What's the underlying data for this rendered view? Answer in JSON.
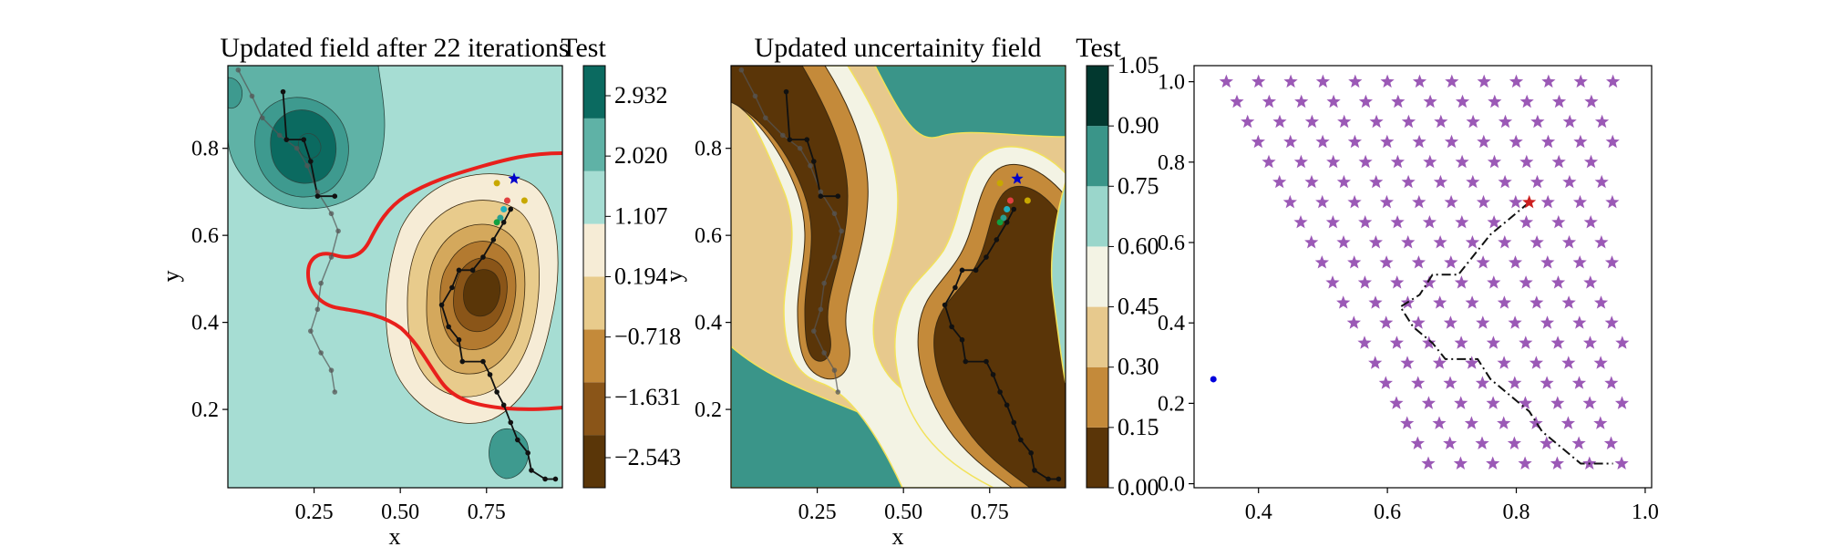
{
  "chart_data": [
    {
      "type": "contour",
      "title": "Updated field after 22 iterations",
      "xlabel": "x",
      "ylabel": "y",
      "xlim": [
        0.0,
        0.97
      ],
      "ylim": [
        0.02,
        0.99
      ],
      "xticks": [
        "0.25",
        "0.50",
        "0.75"
      ],
      "yticks": [
        "0.2",
        "0.4",
        "0.6",
        "0.8"
      ],
      "colorbar": {
        "label": "Test",
        "ticks": [
          "2.932",
          "2.020",
          "1.107",
          "0.194",
          "−0.718",
          "−1.631",
          "−2.543"
        ]
      },
      "paths": [
        {
          "name": "grey-path",
          "points": [
            [
              0.03,
              0.98
            ],
            [
              0.07,
              0.92
            ],
            [
              0.1,
              0.87
            ],
            [
              0.15,
              0.83
            ],
            [
              0.2,
              0.8
            ],
            [
              0.23,
              0.76
            ],
            [
              0.26,
              0.7
            ],
            [
              0.3,
              0.65
            ],
            [
              0.32,
              0.61
            ],
            [
              0.3,
              0.55
            ],
            [
              0.27,
              0.49
            ],
            [
              0.26,
              0.43
            ],
            [
              0.24,
              0.38
            ],
            [
              0.27,
              0.33
            ],
            [
              0.3,
              0.29
            ],
            [
              0.31,
              0.24
            ]
          ]
        },
        {
          "name": "black-path",
          "points": [
            [
              0.16,
              0.93
            ],
            [
              0.17,
              0.82
            ],
            [
              0.22,
              0.82
            ],
            [
              0.24,
              0.77
            ],
            [
              0.26,
              0.69
            ],
            [
              0.31,
              0.69
            ]
          ]
        },
        {
          "name": "black-path-2",
          "points": [
            [
              0.82,
              0.66
            ],
            [
              0.8,
              0.63
            ],
            [
              0.77,
              0.59
            ],
            [
              0.74,
              0.55
            ],
            [
              0.71,
              0.52
            ],
            [
              0.67,
              0.52
            ],
            [
              0.65,
              0.48
            ],
            [
              0.62,
              0.44
            ],
            [
              0.64,
              0.39
            ],
            [
              0.67,
              0.36
            ],
            [
              0.68,
              0.31
            ],
            [
              0.74,
              0.31
            ],
            [
              0.76,
              0.28
            ],
            [
              0.78,
              0.24
            ],
            [
              0.8,
              0.21
            ],
            [
              0.82,
              0.17
            ],
            [
              0.84,
              0.13
            ],
            [
              0.87,
              0.1
            ],
            [
              0.88,
              0.06
            ],
            [
              0.92,
              0.04
            ],
            [
              0.95,
              0.04
            ]
          ]
        }
      ],
      "markers": [
        {
          "type": "star",
          "x": 0.83,
          "y": 0.73,
          "color": "#0000cc"
        },
        {
          "type": "dot",
          "x": 0.78,
          "y": 0.72,
          "color": "#c8a800"
        },
        {
          "type": "dot",
          "x": 0.86,
          "y": 0.68,
          "color": "#c8a800"
        },
        {
          "type": "dot",
          "x": 0.81,
          "y": 0.68,
          "color": "#e04040"
        },
        {
          "type": "dot",
          "x": 0.8,
          "y": 0.66,
          "color": "#20b0c0"
        },
        {
          "type": "dot",
          "x": 0.79,
          "y": 0.64,
          "color": "#2a9d8f"
        },
        {
          "type": "dot",
          "x": 0.78,
          "y": 0.63,
          "color": "#10a040"
        }
      ]
    },
    {
      "type": "contour",
      "title": "Updated uncertainity field",
      "xlabel": "x",
      "ylabel": "y",
      "xlim": [
        0.0,
        0.97
      ],
      "ylim": [
        0.02,
        0.99
      ],
      "xticks": [
        "0.25",
        "0.50",
        "0.75"
      ],
      "yticks": [
        "0.2",
        "0.4",
        "0.6",
        "0.8"
      ],
      "colorbar": {
        "label": "Test",
        "ticks": [
          "0.00",
          "0.15",
          "0.30",
          "0.45",
          "0.60",
          "0.75",
          "0.90",
          "1.05"
        ]
      }
    },
    {
      "type": "scatter",
      "title": "",
      "xlabel": "",
      "ylabel": "",
      "xlim": [
        0.3,
        1.01
      ],
      "ylim": [
        -0.01,
        1.04
      ],
      "xticks": [
        "0.4",
        "0.6",
        "0.8",
        "1.0"
      ],
      "yticks": [
        "0.0",
        "0.2",
        "0.4",
        "0.6",
        "0.8",
        "1.0"
      ],
      "star_color": "#9b59b6",
      "path": [
        [
          0.82,
          0.7
        ],
        [
          0.79,
          0.66
        ],
        [
          0.76,
          0.62
        ],
        [
          0.74,
          0.58
        ],
        [
          0.71,
          0.52
        ],
        [
          0.67,
          0.52
        ],
        [
          0.65,
          0.47
        ],
        [
          0.62,
          0.44
        ],
        [
          0.64,
          0.39
        ],
        [
          0.67,
          0.35
        ],
        [
          0.69,
          0.31
        ],
        [
          0.74,
          0.31
        ],
        [
          0.76,
          0.26
        ],
        [
          0.79,
          0.22
        ],
        [
          0.82,
          0.18
        ],
        [
          0.84,
          0.13
        ],
        [
          0.87,
          0.09
        ],
        [
          0.9,
          0.05
        ],
        [
          0.95,
          0.05
        ]
      ],
      "start_marker": {
        "x": 0.82,
        "y": 0.7,
        "color": "#cc2020"
      },
      "blue_point": {
        "x": 0.33,
        "y": 0.26,
        "color": "#0000dd"
      }
    }
  ]
}
